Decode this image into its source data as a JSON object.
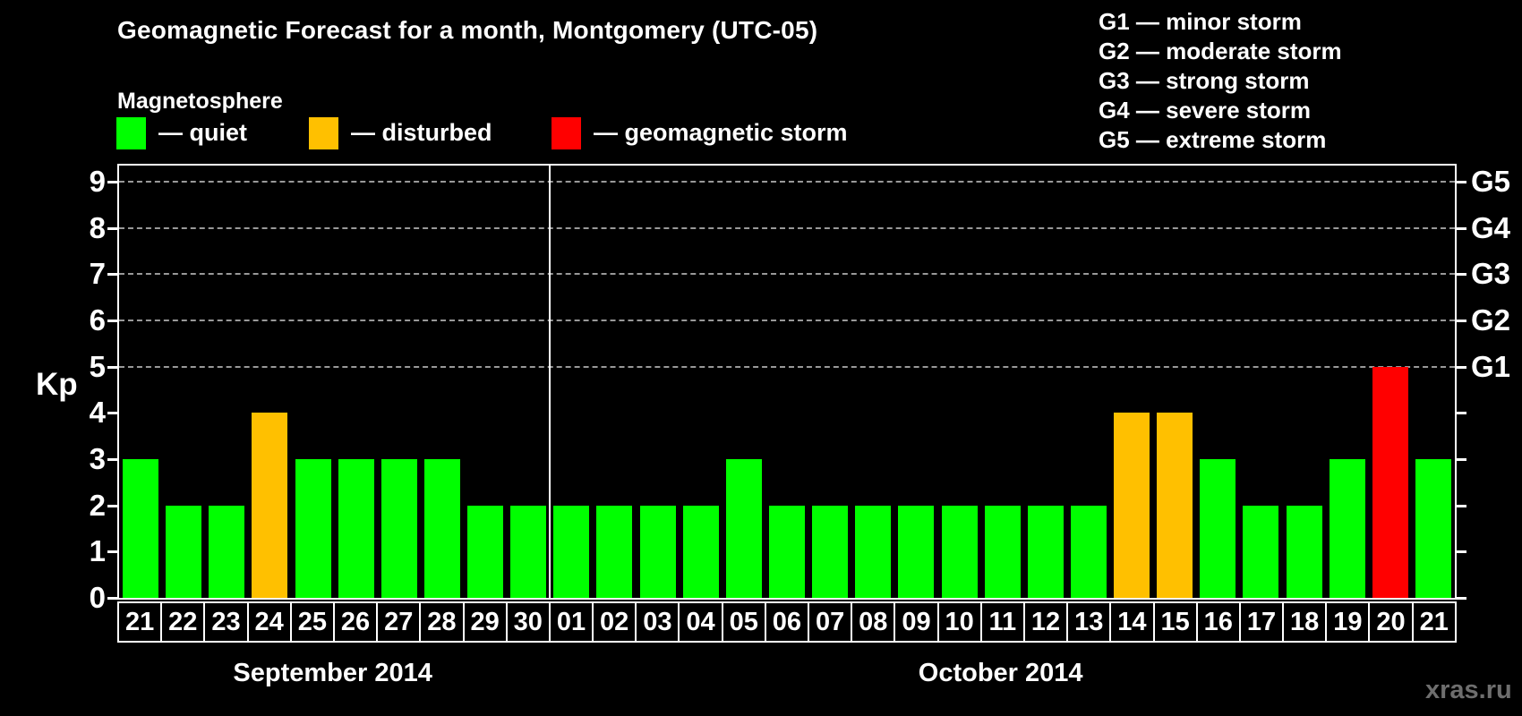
{
  "page": {
    "title": "Geomagnetic Forecast for a month, Montgomery (UTC-05)",
    "subtitle": "Magnetosphere",
    "watermark": "xras.ru"
  },
  "legend": {
    "items": [
      {
        "name": "quiet",
        "label": "— quiet",
        "color": "#00ff00"
      },
      {
        "name": "disturbed",
        "label": "— disturbed",
        "color": "#ffc000"
      },
      {
        "name": "storm",
        "label": "— geomagnetic storm",
        "color": "#ff0000"
      }
    ]
  },
  "storm_scale_legend": {
    "lines": [
      "G1 — minor storm",
      "G2 — moderate storm",
      "G3 — strong storm",
      "G4 — severe storm",
      "G5 — extreme storm"
    ]
  },
  "chart_data": {
    "type": "bar",
    "title": "Geomagnetic Forecast for a month, Montgomery (UTC-05)",
    "ylabel": "Kp",
    "ylim": [
      0,
      9.35
    ],
    "yticks": [
      0,
      1,
      2,
      3,
      4,
      5,
      6,
      7,
      8,
      9
    ],
    "gridlines_at_kp": [
      5,
      6,
      7,
      8,
      9
    ],
    "grid_style": "horizontal dashed gray lines only at G-storm levels",
    "legend_position": "top-left",
    "right_axis_labels": [
      {
        "kp": 5,
        "label": "G1"
      },
      {
        "kp": 6,
        "label": "G2"
      },
      {
        "kp": 7,
        "label": "G3"
      },
      {
        "kp": 8,
        "label": "G4"
      },
      {
        "kp": 9,
        "label": "G5"
      }
    ],
    "status_colors": {
      "quiet": "#00ff00",
      "disturbed": "#ffc000",
      "storm": "#ff0000"
    },
    "months": [
      {
        "label": "September 2014",
        "days": [
          {
            "day": "21",
            "kp": 3,
            "status": "quiet"
          },
          {
            "day": "22",
            "kp": 2,
            "status": "quiet"
          },
          {
            "day": "23",
            "kp": 2,
            "status": "quiet"
          },
          {
            "day": "24",
            "kp": 4,
            "status": "disturbed"
          },
          {
            "day": "25",
            "kp": 3,
            "status": "quiet"
          },
          {
            "day": "26",
            "kp": 3,
            "status": "quiet"
          },
          {
            "day": "27",
            "kp": 3,
            "status": "quiet"
          },
          {
            "day": "28",
            "kp": 3,
            "status": "quiet"
          },
          {
            "day": "29",
            "kp": 2,
            "status": "quiet"
          },
          {
            "day": "30",
            "kp": 2,
            "status": "quiet"
          }
        ]
      },
      {
        "label": "October 2014",
        "days": [
          {
            "day": "01",
            "kp": 2,
            "status": "quiet"
          },
          {
            "day": "02",
            "kp": 2,
            "status": "quiet"
          },
          {
            "day": "03",
            "kp": 2,
            "status": "quiet"
          },
          {
            "day": "04",
            "kp": 2,
            "status": "quiet"
          },
          {
            "day": "05",
            "kp": 3,
            "status": "quiet"
          },
          {
            "day": "06",
            "kp": 2,
            "status": "quiet"
          },
          {
            "day": "07",
            "kp": 2,
            "status": "quiet"
          },
          {
            "day": "08",
            "kp": 2,
            "status": "quiet"
          },
          {
            "day": "09",
            "kp": 2,
            "status": "quiet"
          },
          {
            "day": "10",
            "kp": 2,
            "status": "quiet"
          },
          {
            "day": "11",
            "kp": 2,
            "status": "quiet"
          },
          {
            "day": "12",
            "kp": 2,
            "status": "quiet"
          },
          {
            "day": "13",
            "kp": 2,
            "status": "quiet"
          },
          {
            "day": "14",
            "kp": 4,
            "status": "disturbed"
          },
          {
            "day": "15",
            "kp": 4,
            "status": "disturbed"
          },
          {
            "day": "16",
            "kp": 3,
            "status": "quiet"
          },
          {
            "day": "17",
            "kp": 2,
            "status": "quiet"
          },
          {
            "day": "18",
            "kp": 2,
            "status": "quiet"
          },
          {
            "day": "19",
            "kp": 3,
            "status": "quiet"
          },
          {
            "day": "20",
            "kp": 5,
            "status": "storm"
          },
          {
            "day": "21",
            "kp": 3,
            "status": "quiet"
          }
        ]
      }
    ]
  }
}
